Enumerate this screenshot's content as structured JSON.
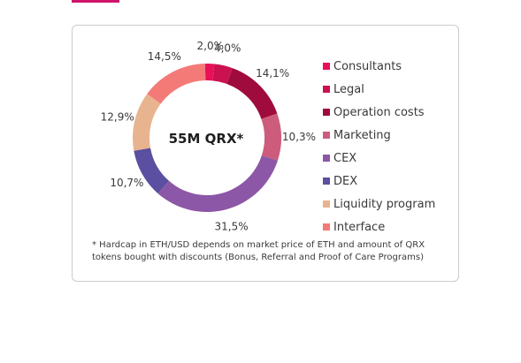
{
  "chart_data": {
    "type": "pie",
    "center_label": "55M QRX*",
    "categories": [
      "Consultants",
      "Legal",
      "Operation costs",
      "Marketing",
      "CEX",
      "DEX",
      "Liquidity program",
      "Interface"
    ],
    "values": [
      2.0,
      4.0,
      14.1,
      10.3,
      31.5,
      10.7,
      12.9,
      14.5
    ],
    "value_labels": [
      "2,0%",
      "4,0%",
      "14,1%",
      "10,3%",
      "31,5%",
      "10,7%",
      "12,9%",
      "14,5%"
    ],
    "colors": [
      "#e8105a",
      "#cc1150",
      "#9e0b3c",
      "#cd5c7c",
      "#8c57a6",
      "#5a4fa0",
      "#e8b48f",
      "#f47a78"
    ],
    "legend_position": "right",
    "footnote": "* Hardcap in ETH/USD depends on market price of ETH and amount of QRX tokens bought with discounts (Bonus, Referral and Proof of Care Programs)"
  }
}
